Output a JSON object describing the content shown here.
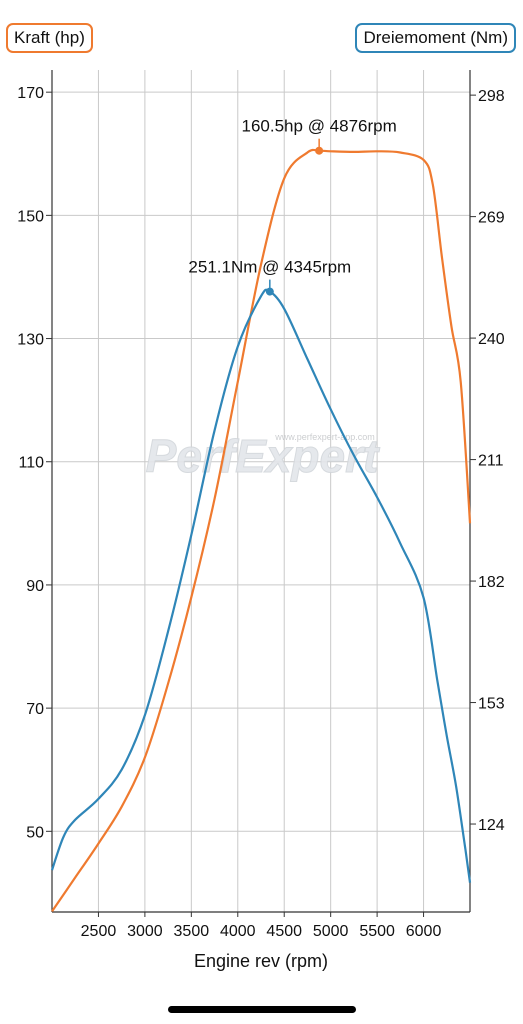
{
  "legend": {
    "power_label": "Kraft (hp)",
    "torque_label": "Dreiemoment (Nm)"
  },
  "watermark": {
    "logo_text": "PerfExpert",
    "url_text": "www.perfexpert-app.com"
  },
  "colors": {
    "power": "#ef7a2f",
    "torque": "#2f86b8",
    "grid": "#c9c9c9",
    "axis": "#333333"
  },
  "chart_data": {
    "type": "line",
    "xlabel": "Engine rev (rpm)",
    "x_ticks": [
      2500,
      3000,
      3500,
      4000,
      4500,
      5000,
      5500,
      6000
    ],
    "xlim": [
      2000,
      6500
    ],
    "grid": true,
    "left_axis": {
      "ticks": [
        50,
        70,
        90,
        110,
        130,
        150,
        170
      ],
      "ylim": [
        36.9,
        173.6
      ]
    },
    "right_axis": {
      "ticks": [
        124,
        153,
        182,
        211,
        240,
        269,
        298
      ],
      "ylim": [
        103,
        304
      ]
    },
    "series": [
      {
        "name": "Kraft (hp)",
        "axis": "left",
        "x": [
          2000,
          2250,
          2500,
          2750,
          3000,
          3250,
          3500,
          3750,
          4000,
          4250,
          4500,
          4750,
          4876,
          5000,
          5250,
          5500,
          5750,
          6000,
          6100,
          6200,
          6300,
          6400,
          6500
        ],
        "y": [
          37,
          42.5,
          48,
          54,
          62,
          74,
          88,
          104,
          123,
          142,
          156,
          160.2,
          160.5,
          160.4,
          160.3,
          160.4,
          160.2,
          159,
          155,
          143,
          132,
          123,
          100
        ],
        "peak": {
          "x": 4876,
          "y": 160.5,
          "label": "160.5hp @ 4876rpm"
        }
      },
      {
        "name": "Dreiemoment (Nm)",
        "axis": "right",
        "x": [
          2000,
          2125,
          2250,
          2500,
          2750,
          3000,
          3250,
          3500,
          3750,
          4000,
          4250,
          4345,
          4500,
          4750,
          5000,
          5250,
          5500,
          5750,
          6000,
          6150,
          6250,
          6350,
          6450,
          6500
        ],
        "y": [
          113,
          121,
          125,
          130,
          137,
          150,
          170,
          193,
          218,
          238,
          250,
          251.1,
          247,
          235,
          223,
          212,
          202,
          191,
          178,
          158,
          145,
          133,
          118,
          110
        ],
        "peak": {
          "x": 4345,
          "y": 251.1,
          "label": "251.1Nm @ 4345rpm"
        }
      }
    ]
  }
}
